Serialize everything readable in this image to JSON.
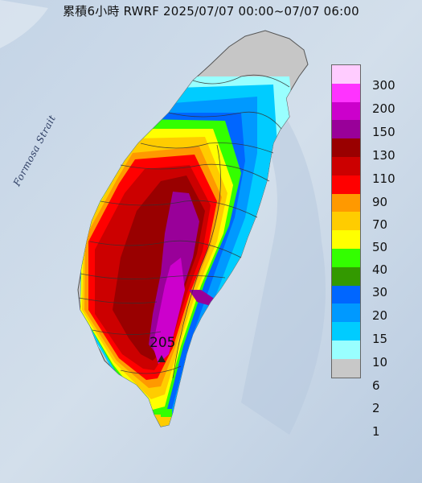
{
  "title": "累積6小時 RWRF 2025/07/07 00:00~07/07 06:00",
  "sea_label": "Formosa Strait",
  "max_value": "205",
  "legend": [
    {
      "label": "300",
      "color": "#ffccff"
    },
    {
      "label": "200",
      "color": "#ff33ff"
    },
    {
      "label": "150",
      "color": "#cc00cc"
    },
    {
      "label": "130",
      "color": "#990099"
    },
    {
      "label": "110",
      "color": "#990000"
    },
    {
      "label": "90",
      "color": "#cc0000"
    },
    {
      "label": "70",
      "color": "#ff0000"
    },
    {
      "label": "50",
      "color": "#ff9900"
    },
    {
      "label": "40",
      "color": "#ffcc00"
    },
    {
      "label": "30",
      "color": "#ffff00"
    },
    {
      "label": "20",
      "color": "#33ff00"
    },
    {
      "label": "15",
      "color": "#339900"
    },
    {
      "label": "10",
      "color": "#0066ff"
    },
    {
      "label": "6",
      "color": "#0099ff"
    },
    {
      "label": "2",
      "color": "#00ccff"
    },
    {
      "label": "1",
      "color": "#99ffff"
    },
    {
      "label": "",
      "color": "#c8c8c8"
    }
  ]
}
